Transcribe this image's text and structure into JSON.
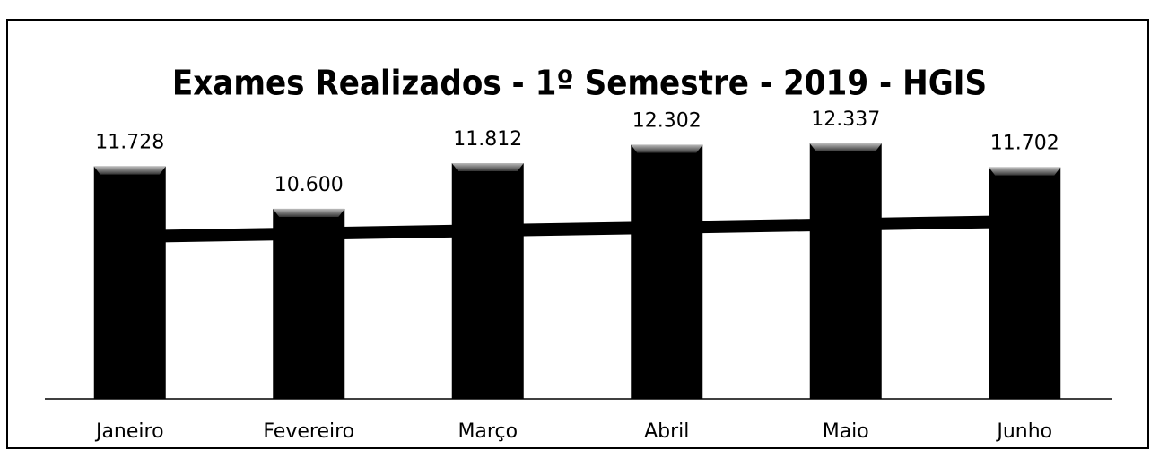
{
  "chart_data": {
    "type": "bar",
    "title": "Exames Realizados - 1º Semestre - 2019 - HGIS",
    "categories": [
      "Janeiro",
      "Fevereiro",
      "Março",
      "Abril",
      "Maio",
      "Junho"
    ],
    "values": [
      11728,
      10600,
      11812,
      12302,
      12337,
      11702
    ],
    "value_labels": [
      "11.728",
      "10.600",
      "11.812",
      "12.302",
      "12.337",
      "11.702"
    ],
    "color": "#000000"
  }
}
